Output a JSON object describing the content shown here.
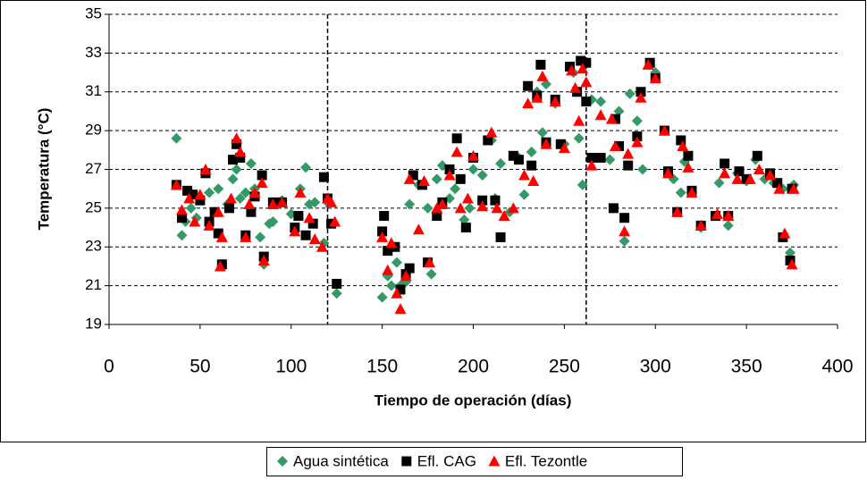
{
  "chart_data": {
    "type": "scatter",
    "xlabel": "Tiempo de operación (días)",
    "ylabel": "Temperatura (°C)",
    "xlim": [
      0,
      400
    ],
    "xticks": [
      0,
      50,
      100,
      150,
      200,
      250,
      300,
      350,
      400
    ],
    "ylim": [
      19,
      35
    ],
    "yticks": [
      19,
      21,
      23,
      25,
      27,
      29,
      31,
      33,
      35
    ],
    "grid": true,
    "grid_style": "dashed",
    "vlines": [
      120,
      262
    ],
    "legend": "bottom",
    "series": [
      {
        "name": "Agua sintética",
        "color": "#339966",
        "marker": "diamond",
        "x": [
          37,
          40,
          42,
          45,
          48,
          50,
          55,
          58,
          60,
          62,
          65,
          68,
          70,
          72,
          75,
          78,
          80,
          83,
          85,
          88,
          90,
          95,
          100,
          105,
          108,
          110,
          113,
          118,
          120,
          125,
          150,
          153,
          155,
          158,
          160,
          163,
          165,
          170,
          175,
          177,
          180,
          183,
          187,
          190,
          195,
          198,
          200,
          205,
          210,
          212,
          215,
          220,
          225,
          228,
          232,
          235,
          238,
          240,
          245,
          250,
          255,
          258,
          260,
          265,
          270,
          275,
          280,
          283,
          286,
          290,
          293,
          297,
          300,
          305,
          310,
          314,
          316,
          320,
          325,
          335,
          340,
          345,
          350,
          355,
          360,
          365,
          370,
          374,
          376
        ],
        "values": [
          28.6,
          23.6,
          24.3,
          25.0,
          24.5,
          25.5,
          25.8,
          24.8,
          26.0,
          22.0,
          25.2,
          26.5,
          27.0,
          25.5,
          25.8,
          27.3,
          26.0,
          23.5,
          22.1,
          24.2,
          24.3,
          25.4,
          24.7,
          26.0,
          27.1,
          25.2,
          25.3,
          23.2,
          25.3,
          20.6,
          20.4,
          21.5,
          21.0,
          22.2,
          21.0,
          21.2,
          25.2,
          26.2,
          25.0,
          21.6,
          26.5,
          27.2,
          25.5,
          26.0,
          24.4,
          25.0,
          27.0,
          26.7,
          28.5,
          25.5,
          27.3,
          24.8,
          27.6,
          25.7,
          27.9,
          31.0,
          28.9,
          31.4,
          30.4,
          28.3,
          32.0,
          28.6,
          26.2,
          30.6,
          30.5,
          27.5,
          30.0,
          23.3,
          30.9,
          29.5,
          27.0,
          32.4,
          32.0,
          29.0,
          26.5,
          25.8,
          27.4,
          25.8,
          24.0,
          26.3,
          24.1,
          26.8,
          26.4,
          27.5,
          26.5,
          26.3,
          26.0,
          22.7,
          26.2
        ]
      },
      {
        "name": "Efl. CAG",
        "color": "#000000",
        "marker": "square",
        "x": [
          37,
          40,
          43,
          46,
          50,
          53,
          55,
          58,
          60,
          62,
          66,
          68,
          70,
          72,
          75,
          78,
          80,
          84,
          85,
          90,
          95,
          102,
          104,
          108,
          112,
          118,
          120,
          122,
          125,
          150,
          151,
          153,
          157,
          160,
          163,
          165,
          167,
          172,
          175,
          180,
          183,
          187,
          191,
          193,
          196,
          200,
          205,
          208,
          212,
          215,
          222,
          225,
          230,
          232,
          235,
          237,
          240,
          245,
          248,
          253,
          257,
          259,
          262,
          262,
          265,
          270,
          277,
          278,
          280,
          283,
          285,
          290,
          292,
          297,
          300,
          305,
          307,
          312,
          314,
          318,
          320,
          325,
          333,
          338,
          340,
          346,
          350,
          356,
          363,
          367,
          370,
          374,
          375
        ],
        "values": [
          26.2,
          24.5,
          25.9,
          25.7,
          25.4,
          26.8,
          24.3,
          24.8,
          23.7,
          22.1,
          25.0,
          27.5,
          28.3,
          27.6,
          23.6,
          24.8,
          25.6,
          26.7,
          22.5,
          25.3,
          25.3,
          24.0,
          24.6,
          23.6,
          24.2,
          26.6,
          25.5,
          24.2,
          21.1,
          23.8,
          24.6,
          22.8,
          23.0,
          20.8,
          21.6,
          21.9,
          26.7,
          26.2,
          22.2,
          24.6,
          25.3,
          27.0,
          28.6,
          26.5,
          24.0,
          27.6,
          25.4,
          28.5,
          25.4,
          23.5,
          27.7,
          27.5,
          31.3,
          27.2,
          30.8,
          32.4,
          28.4,
          30.6,
          28.3,
          32.3,
          31.0,
          32.6,
          32.5,
          30.5,
          27.6,
          27.6,
          25.0,
          29.6,
          28.2,
          24.5,
          27.2,
          28.7,
          31.0,
          32.5,
          31.7,
          29.0,
          26.9,
          24.8,
          28.5,
          27.7,
          25.9,
          24.1,
          24.6,
          27.3,
          24.6,
          26.9,
          26.5,
          27.7,
          26.8,
          26.3,
          23.5,
          22.3,
          26.0
        ]
      },
      {
        "name": "Efl. Tezontle",
        "color": "#ff0000",
        "marker": "triangle",
        "x": [
          37,
          40,
          44,
          47,
          50,
          53,
          55,
          60,
          61,
          62,
          67,
          70,
          72,
          75,
          77,
          80,
          84,
          85,
          90,
          95,
          102,
          105,
          110,
          113,
          117,
          120,
          122,
          124,
          150,
          153,
          155,
          158,
          160,
          163,
          165,
          170,
          173,
          176,
          180,
          183,
          187,
          191,
          193,
          197,
          200,
          205,
          210,
          213,
          217,
          222,
          228,
          230,
          233,
          235,
          238,
          240,
          245,
          250,
          254,
          256,
          258,
          260,
          262,
          265,
          270,
          276,
          278,
          283,
          285,
          290,
          292,
          296,
          300,
          305,
          307,
          312,
          315,
          318,
          320,
          325,
          334,
          338,
          340,
          345,
          352,
          357,
          363,
          368,
          371,
          375,
          376
        ],
        "values": [
          26.2,
          24.9,
          25.5,
          24.3,
          25.7,
          27.0,
          24.1,
          24.8,
          22.0,
          23.5,
          25.5,
          28.6,
          27.9,
          23.5,
          25.2,
          25.8,
          26.3,
          22.3,
          25.2,
          25.3,
          23.8,
          25.8,
          24.5,
          23.4,
          23.0,
          25.5,
          25.3,
          24.3,
          23.5,
          21.8,
          23.2,
          20.6,
          19.8,
          21.5,
          26.5,
          23.9,
          26.4,
          22.2,
          25.0,
          25.2,
          26.7,
          27.9,
          25.0,
          25.5,
          27.7,
          25.1,
          28.9,
          25.0,
          24.6,
          25.0,
          26.7,
          30.4,
          26.4,
          30.7,
          31.8,
          28.3,
          30.5,
          28.1,
          32.1,
          31.2,
          29.5,
          32.2,
          31.5,
          27.2,
          29.8,
          29.6,
          28.2,
          23.8,
          27.8,
          28.4,
          30.7,
          32.4,
          31.7,
          29.0,
          26.8,
          24.8,
          28.2,
          27.1,
          25.8,
          24.1,
          24.7,
          26.8,
          24.6,
          26.5,
          26.5,
          27.0,
          26.7,
          26.0,
          23.7,
          22.1,
          26.0
        ]
      }
    ]
  }
}
